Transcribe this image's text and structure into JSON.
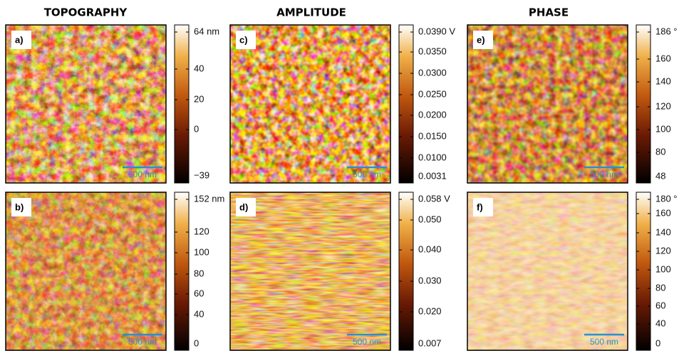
{
  "headers": [
    "TOPOGRAPHY",
    "AMPLITUDE",
    "PHASE"
  ],
  "panels": [
    {
      "label": "a)",
      "scale_bar": "500 nm",
      "colorbar": [
        "64 nm",
        "40",
        "20",
        "0",
        "−39"
      ]
    },
    {
      "label": "c)",
      "scale_bar": "500 nm",
      "colorbar": [
        "0.0390 V",
        "0.0350",
        "0.0300",
        "0.0250",
        "0.0200",
        "0.0150",
        "0.0100",
        "0.0031"
      ]
    },
    {
      "label": "e)",
      "scale_bar": "500 nm",
      "colorbar": [
        "186 °",
        "160",
        "140",
        "120",
        "100",
        "80",
        "48"
      ]
    },
    {
      "label": "b)",
      "scale_bar": "500 nm",
      "colorbar": [
        "152 nm",
        "120",
        "100",
        "80",
        "60",
        "40",
        "0"
      ]
    },
    {
      "label": "d)",
      "scale_bar": "500 nm",
      "colorbar": [
        "0.058 V",
        "0.050",
        "0.040",
        "0.030",
        "0.020",
        "0.007"
      ]
    },
    {
      "label": "f)",
      "scale_bar": "500 nm",
      "colorbar": [
        "180 °",
        "160",
        "140",
        "120",
        "100",
        "80",
        "60",
        "40",
        "0"
      ]
    }
  ]
}
